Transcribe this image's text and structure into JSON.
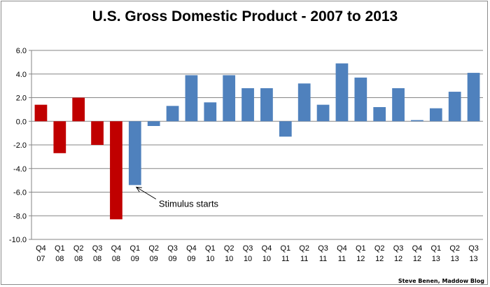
{
  "colors": {
    "negative_pre_stimulus": "#c00000",
    "series": "#4f81bd",
    "grid": "#868686"
  },
  "credit": "Steve Benen, Maddow Blog",
  "chart_data": {
    "type": "bar",
    "title": "U.S. Gross Domestic Product - 2007 to 2013",
    "xlabel": "",
    "ylabel": "",
    "ylim": [
      -10,
      6
    ],
    "ytick_step": 2,
    "ytick_labels": [
      "-10.0",
      "-8.0",
      "-6.0",
      "-4.0",
      "-2.0",
      "0.0",
      "2.0",
      "4.0",
      "6.0"
    ],
    "grid": true,
    "categories": [
      [
        "Q4",
        "07"
      ],
      [
        "Q1",
        "08"
      ],
      [
        "Q2",
        "08"
      ],
      [
        "Q3",
        "08"
      ],
      [
        "Q4",
        "08"
      ],
      [
        "Q1",
        "09"
      ],
      [
        "Q2",
        "09"
      ],
      [
        "Q3",
        "09"
      ],
      [
        "Q4",
        "09"
      ],
      [
        "Q1",
        "10"
      ],
      [
        "Q2",
        "10"
      ],
      [
        "Q3",
        "10"
      ],
      [
        "Q4",
        "10"
      ],
      [
        "Q1",
        "11"
      ],
      [
        "Q2",
        "11"
      ],
      [
        "Q3",
        "11"
      ],
      [
        "Q4",
        "11"
      ],
      [
        "Q1",
        "12"
      ],
      [
        "Q2",
        "12"
      ],
      [
        "Q3",
        "12"
      ],
      [
        "Q4",
        "12"
      ],
      [
        "Q1",
        "13"
      ],
      [
        "Q2",
        "13"
      ],
      [
        "Q3",
        "13"
      ]
    ],
    "values": [
      1.4,
      -2.7,
      2.0,
      -2.0,
      -8.3,
      -5.4,
      -0.4,
      1.3,
      3.9,
      1.6,
      3.9,
      2.8,
      2.8,
      -1.3,
      3.2,
      1.4,
      4.9,
      3.7,
      1.2,
      2.8,
      0.1,
      1.1,
      2.5,
      4.1
    ],
    "bar_colors": [
      "#c00000",
      "#c00000",
      "#c00000",
      "#c00000",
      "#c00000",
      "#4f81bd",
      "#4f81bd",
      "#4f81bd",
      "#4f81bd",
      "#4f81bd",
      "#4f81bd",
      "#4f81bd",
      "#4f81bd",
      "#4f81bd",
      "#4f81bd",
      "#4f81bd",
      "#4f81bd",
      "#4f81bd",
      "#4f81bd",
      "#4f81bd",
      "#4f81bd",
      "#4f81bd",
      "#4f81bd",
      "#4f81bd"
    ],
    "annotation": {
      "text": "Stimulus starts",
      "target_index": 5
    }
  }
}
